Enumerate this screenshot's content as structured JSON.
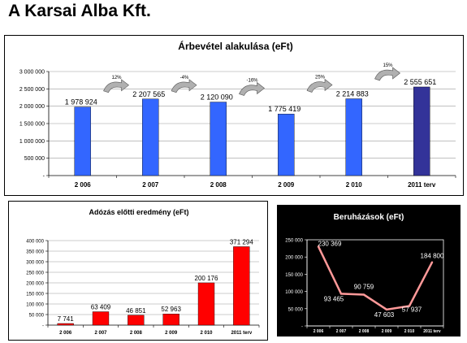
{
  "page": {
    "title": "A Karsai Alba Kft."
  },
  "chart_data": [
    {
      "id": "revenue",
      "type": "bar",
      "title": "Árbevétel alakulása (eFt)",
      "categories": [
        "2 006",
        "2 007",
        "2 008",
        "2 009",
        "2 010",
        "2011 terv"
      ],
      "values": [
        1978924,
        2207565,
        2120090,
        1775419,
        2214883,
        2555651
      ],
      "value_labels": [
        "1 978 924",
        "2 207 565",
        "2 120 090",
        "1 775 419",
        "2 214 883",
        "2 555 651"
      ],
      "ylim": [
        0,
        3000000
      ],
      "yticks": [
        0,
        500000,
        1000000,
        1500000,
        2000000,
        2500000,
        3000000
      ],
      "ytick_labels": [
        "-",
        "500 000",
        "1 000 000",
        "1 500 000",
        "2 000 000",
        "2 500 000",
        "3 000 000"
      ],
      "changes": [
        "12%",
        "-4%",
        "-16%",
        "25%",
        "15%"
      ],
      "colors": {
        "bar": "#3366ff",
        "last_bar": "#333399",
        "arrow": "#b0b0b0"
      },
      "grid": true
    },
    {
      "id": "pretax",
      "type": "bar",
      "title": "Adózás előtti eredmény (eFt)",
      "categories": [
        "2 006",
        "2 007",
        "2 008",
        "2 009",
        "2 010",
        "2011 terv"
      ],
      "values": [
        7741,
        63409,
        46851,
        52963,
        200176,
        371294
      ],
      "value_labels": [
        "7 741",
        "63 409",
        "46 851",
        "52 963",
        "200 176",
        "371 294"
      ],
      "ylim": [
        0,
        400000
      ],
      "yticks": [
        0,
        50000,
        100000,
        150000,
        200000,
        250000,
        300000,
        350000,
        400000
      ],
      "ytick_labels": [
        "-",
        "50 000",
        "100 000",
        "150 000",
        "200 000",
        "250 000",
        "300 000",
        "350 000",
        "400 000"
      ],
      "colors": {
        "bar": "#ff0000"
      },
      "grid": true
    },
    {
      "id": "invest",
      "type": "line",
      "title": "Beruházások (eFt)",
      "categories": [
        "2 006",
        "2 007",
        "2 008",
        "2 009",
        "2 010",
        "2011 terv"
      ],
      "values": [
        230369,
        93465,
        90759,
        47603,
        57937,
        184800
      ],
      "value_labels": [
        "230 369",
        "93 465",
        "90 759",
        "47 603",
        "57 937",
        "184 800"
      ],
      "ylim": [
        0,
        250000
      ],
      "yticks": [
        0,
        50000,
        100000,
        150000,
        200000,
        250000
      ],
      "ytick_labels": [
        "-",
        "50 000",
        "100 000",
        "150 000",
        "200 000",
        "250 000"
      ],
      "colors": {
        "line": "#ff9999",
        "background": "#000000",
        "text": "#ffffff",
        "plot_border": "#ffffff"
      },
      "grid": false
    }
  ]
}
